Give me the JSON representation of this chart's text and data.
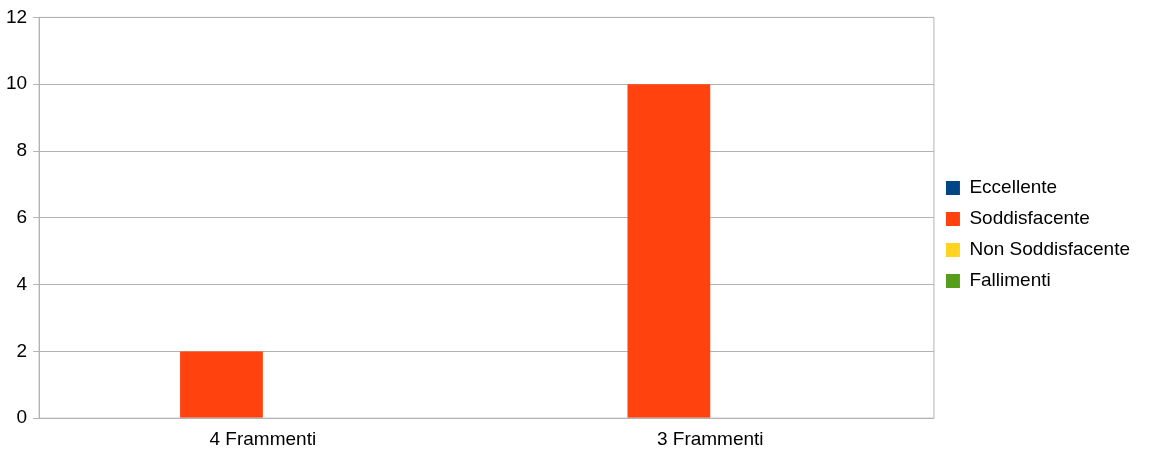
{
  "chart_data": {
    "type": "bar",
    "categories": [
      "4 Frammenti",
      "3 Frammenti"
    ],
    "series": [
      {
        "name": "Eccellente",
        "color": "#004586",
        "values": [
          0,
          0
        ]
      },
      {
        "name": "Soddisfacente",
        "color": "#ff420e",
        "values": [
          2,
          10
        ]
      },
      {
        "name": "Non Soddisfacente",
        "color": "#ffd320",
        "values": [
          0,
          0
        ]
      },
      {
        "name": "Fallimenti",
        "color": "#579d1c",
        "values": [
          0,
          0
        ]
      }
    ],
    "ylim": [
      0,
      12
    ],
    "yticks": [
      0,
      2,
      4,
      6,
      8,
      10,
      12
    ],
    "grid": "y",
    "legend": "right"
  }
}
